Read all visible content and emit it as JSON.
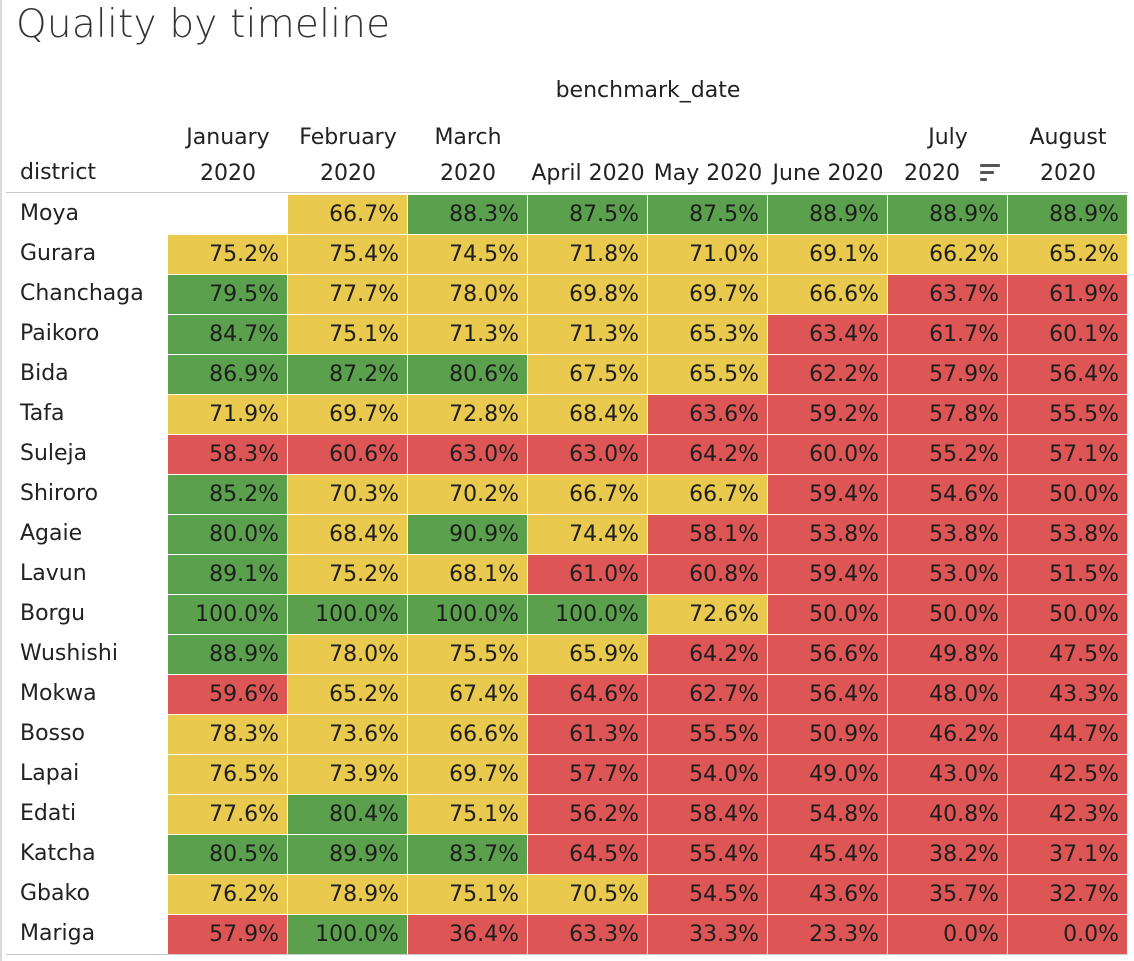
{
  "colors": {
    "green": "#5ba14d",
    "yellow": "#eac94f",
    "red": "#de5556"
  },
  "chart_data": {
    "type": "heatmap",
    "title": "Quality by timeline",
    "column_group_label": "benchmark_date",
    "row_header_label": "district",
    "columns": [
      "January 2020",
      "February 2020",
      "March 2020",
      "April 2020",
      "May 2020",
      "June 2020",
      "July 2020",
      "August 2020"
    ],
    "rows": [
      "Moya",
      "Gurara",
      "Chanchaga",
      "Paikoro",
      "Bida",
      "Tafa",
      "Suleja",
      "Shiroro",
      "Agaie",
      "Lavun",
      "Borgu",
      "Wushishi",
      "Mokwa",
      "Bosso",
      "Lapai",
      "Edati",
      "Katcha",
      "Gbako",
      "Mariga"
    ],
    "values": [
      [
        "",
        "66.7%",
        "88.3%",
        "87.5%",
        "87.5%",
        "88.9%",
        "88.9%",
        "88.9%"
      ],
      [
        "75.2%",
        "75.4%",
        "74.5%",
        "71.8%",
        "71.0%",
        "69.1%",
        "66.2%",
        "65.2%"
      ],
      [
        "79.5%",
        "77.7%",
        "78.0%",
        "69.8%",
        "69.7%",
        "66.6%",
        "63.7%",
        "61.9%"
      ],
      [
        "84.7%",
        "75.1%",
        "71.3%",
        "71.3%",
        "65.3%",
        "63.4%",
        "61.7%",
        "60.1%"
      ],
      [
        "86.9%",
        "87.2%",
        "80.6%",
        "67.5%",
        "65.5%",
        "62.2%",
        "57.9%",
        "56.4%"
      ],
      [
        "71.9%",
        "69.7%",
        "72.8%",
        "68.4%",
        "63.6%",
        "59.2%",
        "57.8%",
        "55.5%"
      ],
      [
        "58.3%",
        "60.6%",
        "63.0%",
        "63.0%",
        "64.2%",
        "60.0%",
        "55.2%",
        "57.1%"
      ],
      [
        "85.2%",
        "70.3%",
        "70.2%",
        "66.7%",
        "66.7%",
        "59.4%",
        "54.6%",
        "50.0%"
      ],
      [
        "80.0%",
        "68.4%",
        "90.9%",
        "74.4%",
        "58.1%",
        "53.8%",
        "53.8%",
        "53.8%"
      ],
      [
        "89.1%",
        "75.2%",
        "68.1%",
        "61.0%",
        "60.8%",
        "59.4%",
        "53.0%",
        "51.5%"
      ],
      [
        "100.0%",
        "100.0%",
        "100.0%",
        "100.0%",
        "72.6%",
        "50.0%",
        "50.0%",
        "50.0%"
      ],
      [
        "88.9%",
        "78.0%",
        "75.5%",
        "65.9%",
        "64.2%",
        "56.6%",
        "49.8%",
        "47.5%"
      ],
      [
        "59.6%",
        "65.2%",
        "67.4%",
        "64.6%",
        "62.7%",
        "56.4%",
        "48.0%",
        "43.3%"
      ],
      [
        "78.3%",
        "73.6%",
        "66.6%",
        "61.3%",
        "55.5%",
        "50.9%",
        "46.2%",
        "44.7%"
      ],
      [
        "76.5%",
        "73.9%",
        "69.7%",
        "57.7%",
        "54.0%",
        "49.0%",
        "43.0%",
        "42.5%"
      ],
      [
        "77.6%",
        "80.4%",
        "75.1%",
        "56.2%",
        "58.4%",
        "54.8%",
        "40.8%",
        "42.3%"
      ],
      [
        "80.5%",
        "89.9%",
        "83.7%",
        "64.5%",
        "55.4%",
        "45.4%",
        "38.2%",
        "37.1%"
      ],
      [
        "76.2%",
        "78.9%",
        "75.1%",
        "70.5%",
        "54.5%",
        "43.6%",
        "35.7%",
        "32.7%"
      ],
      [
        "57.9%",
        "100.0%",
        "36.4%",
        "63.3%",
        "33.3%",
        "23.3%",
        "0.0%",
        "0.0%"
      ]
    ],
    "color_categories": [
      [
        "",
        "yellow",
        "green",
        "green",
        "green",
        "green",
        "green",
        "green"
      ],
      [
        "yellow",
        "yellow",
        "yellow",
        "yellow",
        "yellow",
        "yellow",
        "yellow",
        "yellow"
      ],
      [
        "green",
        "yellow",
        "yellow",
        "yellow",
        "yellow",
        "yellow",
        "red",
        "red"
      ],
      [
        "green",
        "yellow",
        "yellow",
        "yellow",
        "yellow",
        "red",
        "red",
        "red"
      ],
      [
        "green",
        "green",
        "green",
        "yellow",
        "yellow",
        "red",
        "red",
        "red"
      ],
      [
        "yellow",
        "yellow",
        "yellow",
        "yellow",
        "red",
        "red",
        "red",
        "red"
      ],
      [
        "red",
        "red",
        "red",
        "red",
        "red",
        "red",
        "red",
        "red"
      ],
      [
        "green",
        "yellow",
        "yellow",
        "yellow",
        "yellow",
        "red",
        "red",
        "red"
      ],
      [
        "green",
        "yellow",
        "green",
        "yellow",
        "red",
        "red",
        "red",
        "red"
      ],
      [
        "green",
        "yellow",
        "yellow",
        "red",
        "red",
        "red",
        "red",
        "red"
      ],
      [
        "green",
        "green",
        "green",
        "green",
        "yellow",
        "red",
        "red",
        "red"
      ],
      [
        "green",
        "yellow",
        "yellow",
        "yellow",
        "red",
        "red",
        "red",
        "red"
      ],
      [
        "red",
        "yellow",
        "yellow",
        "red",
        "red",
        "red",
        "red",
        "red"
      ],
      [
        "yellow",
        "yellow",
        "yellow",
        "red",
        "red",
        "red",
        "red",
        "red"
      ],
      [
        "yellow",
        "yellow",
        "yellow",
        "red",
        "red",
        "red",
        "red",
        "red"
      ],
      [
        "yellow",
        "green",
        "yellow",
        "red",
        "red",
        "red",
        "red",
        "red"
      ],
      [
        "green",
        "green",
        "green",
        "red",
        "red",
        "red",
        "red",
        "red"
      ],
      [
        "yellow",
        "yellow",
        "yellow",
        "yellow",
        "red",
        "red",
        "red",
        "red"
      ],
      [
        "red",
        "green",
        "red",
        "red",
        "red",
        "red",
        "red",
        "red"
      ]
    ],
    "sorted_by": "July 2020",
    "sort_order": "descending"
  },
  "icons": {
    "sort": "sort-descending-icon"
  }
}
